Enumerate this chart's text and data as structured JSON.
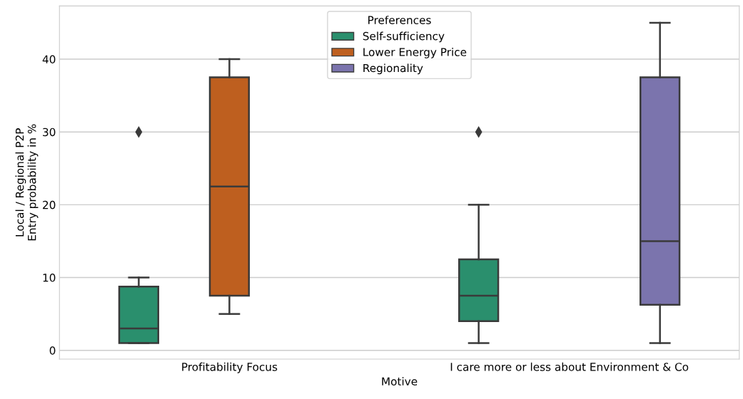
{
  "chart_data": {
    "type": "box",
    "xlabel": "Motive",
    "ylabel": "Local / Regional P2P\nEntry probability in %",
    "legend_title": "Preferences",
    "legend": "top",
    "grid": "y",
    "marker": "diamond",
    "categories": [
      "Profitability Focus",
      "I care more or less about Environment & Co"
    ],
    "ylim": [
      -1.2,
      47.3
    ],
    "yticks": [
      0,
      10,
      20,
      30,
      40
    ],
    "series": [
      {
        "name": "Self-sufficiency",
        "color": "#2a8f6d",
        "boxes": [
          {
            "low": 1,
            "q1": 1,
            "median": 3,
            "q3": 8.75,
            "high": 10,
            "outliers": [
              30
            ]
          },
          {
            "low": 1,
            "q1": 4,
            "median": 7.5,
            "q3": 12.5,
            "high": 20,
            "outliers": [
              30
            ]
          }
        ]
      },
      {
        "name": "Lower Energy Price",
        "color": "#be5f1f",
        "boxes": [
          {
            "low": 5,
            "q1": 7.5,
            "median": 22.5,
            "q3": 37.5,
            "high": 40
          },
          null
        ]
      },
      {
        "name": "Regionality",
        "color": "#7b74ad",
        "boxes": [
          null,
          {
            "low": 1,
            "q1": 6.25,
            "median": 15,
            "q3": 37.5,
            "high": 45
          }
        ]
      }
    ]
  }
}
